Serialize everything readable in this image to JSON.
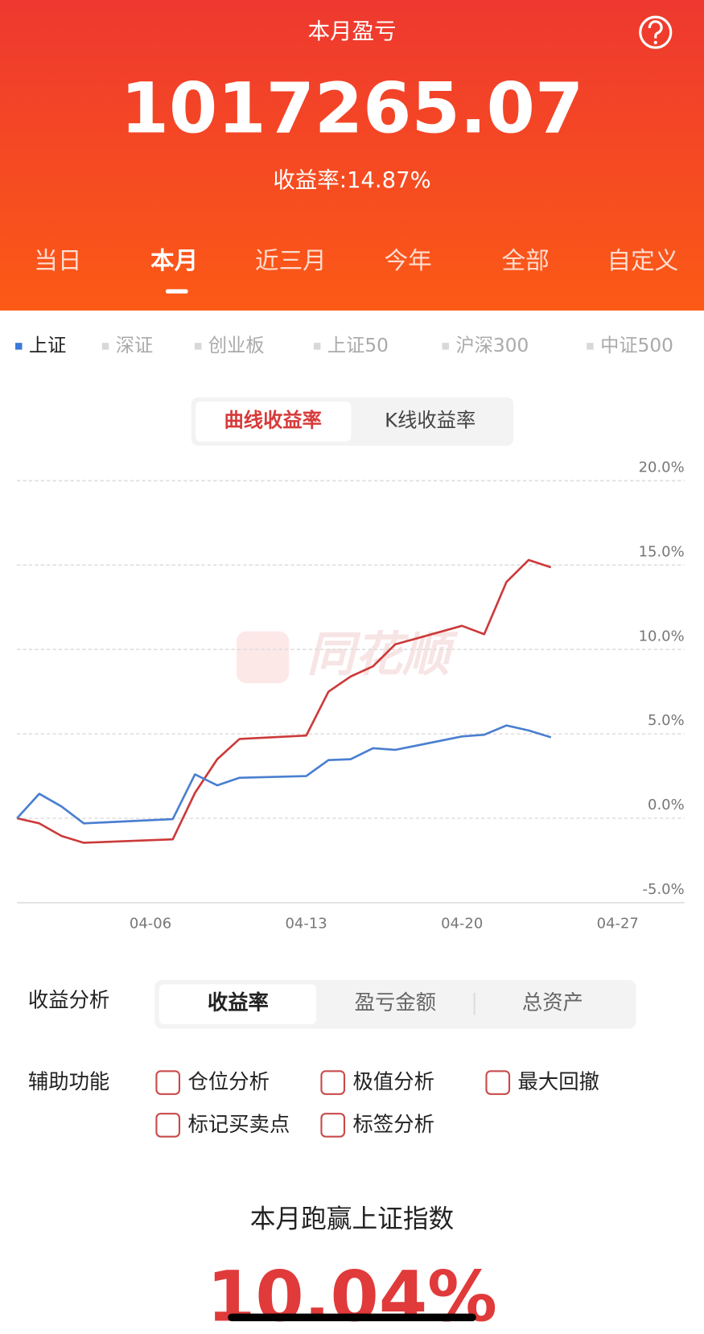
{
  "header": {
    "title": "本月盈亏",
    "amount": "1017265.07",
    "rate": "收益率:14.87%"
  },
  "period_tabs": [
    "当日",
    "本月",
    "近三月",
    "今年",
    "全部",
    "自定义"
  ],
  "index_tabs": [
    "上证",
    "深证",
    "创业板",
    "上证50",
    "沪深300",
    "中证500"
  ],
  "chart_mode_tabs": [
    "曲线收益率",
    "K线收益率"
  ],
  "watermark": "同花顺",
  "chart_data": {
    "type": "line",
    "x": [
      "03-31",
      "04-01",
      "04-02",
      "04-03",
      "04-07",
      "04-08",
      "04-09",
      "04-10",
      "04-13",
      "04-14",
      "04-15",
      "04-16",
      "04-17",
      "04-20",
      "04-21",
      "04-22",
      "04-23",
      "04-24"
    ],
    "series": [
      {
        "color": "#cc3a3a",
        "values": [
          0,
          -0.3,
          -1.05,
          -1.45,
          -1.25,
          1.5,
          3.5,
          4.7,
          4.9,
          7.5,
          8.4,
          9.0,
          10.3,
          11.4,
          10.9,
          14.0,
          15.3,
          14.87
        ]
      },
      {
        "color": "#4a7fd0",
        "values": [
          0,
          1.45,
          0.7,
          -0.3,
          -0.05,
          2.6,
          1.95,
          2.4,
          2.5,
          3.45,
          3.5,
          4.15,
          4.05,
          4.85,
          4.95,
          5.5,
          5.2,
          4.8
        ]
      }
    ],
    "xlim": [
      "03-31",
      "04-30"
    ],
    "xticks": [
      "04-06",
      "04-13",
      "04-20",
      "04-27"
    ],
    "ylim": [
      -5,
      20
    ],
    "yticks": [
      {
        "value": -5,
        "label": "-5.0%"
      },
      {
        "value": 0,
        "label": "0.0%"
      },
      {
        "value": 5,
        "label": "5.0%"
      },
      {
        "value": 10,
        "label": "10.0%"
      },
      {
        "value": 15,
        "label": "15.0%"
      },
      {
        "value": 20,
        "label": "20.0%"
      }
    ],
    "grid": true
  },
  "analysis": {
    "label": "收益分析",
    "tabs": [
      "收益率",
      "盈亏金额",
      "总资产"
    ]
  },
  "aux": {
    "label": "辅助功能",
    "options": [
      "仓位分析",
      "极值分析",
      "最大回撤",
      "标记买卖点",
      "标签分析"
    ]
  },
  "beat": {
    "title": "本月跑赢上证指数",
    "value": "10.04%"
  }
}
